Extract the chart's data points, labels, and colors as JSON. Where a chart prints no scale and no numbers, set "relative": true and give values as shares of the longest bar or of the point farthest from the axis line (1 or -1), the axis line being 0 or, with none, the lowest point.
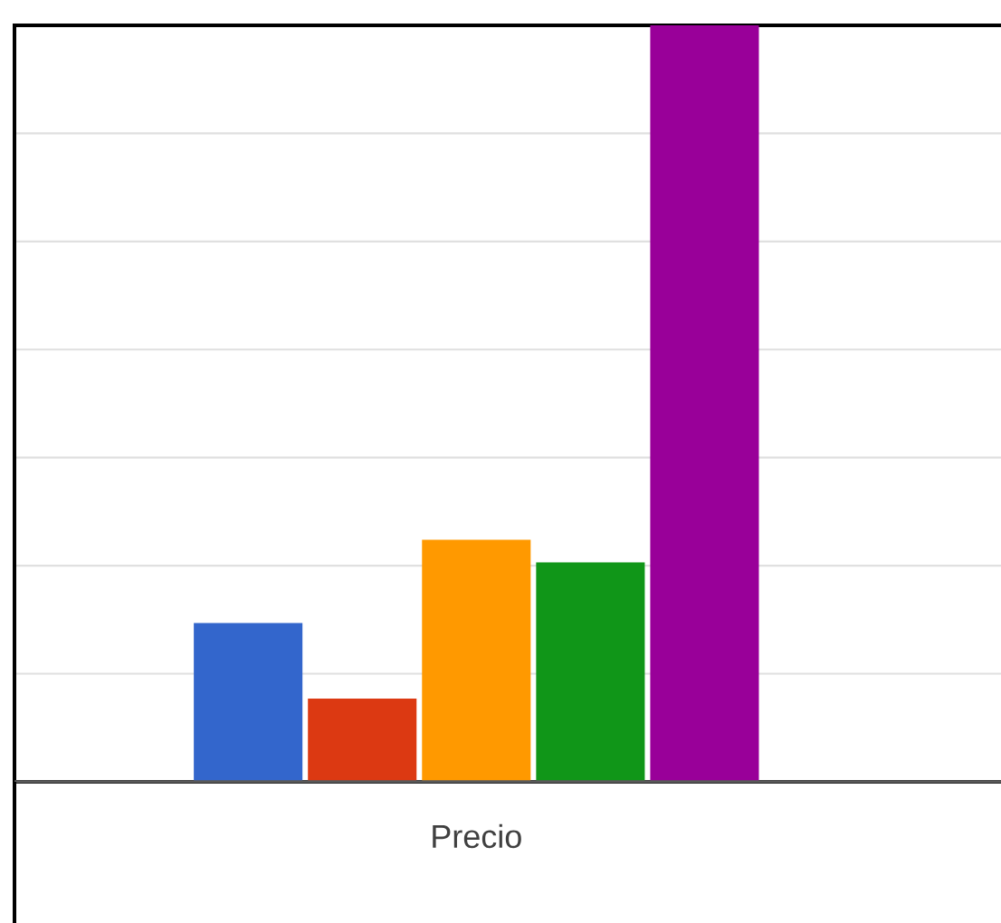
{
  "chart_data": {
    "type": "bar",
    "categories": [
      null,
      null,
      null,
      null,
      null
    ],
    "xlabel": "Precio",
    "relative": true,
    "grid": "y",
    "values": [
      0.21,
      0.11,
      0.32,
      0.29,
      1
    ],
    "colors": [
      "#3366cc",
      "#dc3912",
      "#ff9900",
      "#109618",
      "#990099"
    ]
  }
}
